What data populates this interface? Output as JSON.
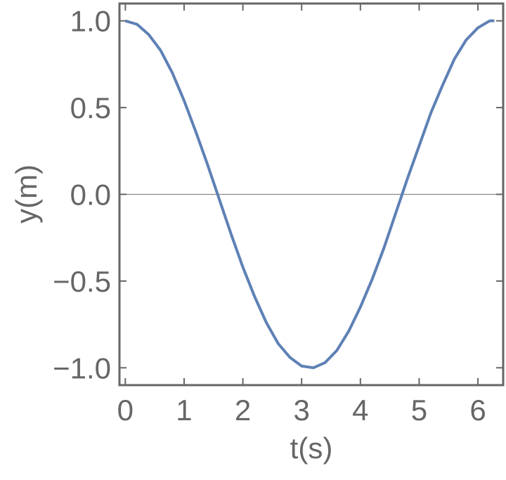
{
  "chart_data": {
    "type": "line",
    "x_label": "t(s)",
    "y_label": "y(m)",
    "x": [
      0,
      0.2,
      0.4,
      0.6,
      0.8,
      1.0,
      1.2,
      1.4,
      1.6,
      1.8,
      2.0,
      2.2,
      2.4,
      2.6,
      2.8,
      3.0,
      3.2,
      3.4,
      3.6,
      3.8,
      4.0,
      4.2,
      4.4,
      4.6,
      4.8,
      5.0,
      5.2,
      5.4,
      5.6,
      5.8,
      6.0,
      6.2,
      6.28
    ],
    "series": [
      {
        "color": "#5e81b5",
        "values": [
          1,
          0.98,
          0.92,
          0.83,
          0.7,
          0.54,
          0.36,
          0.17,
          -0.03,
          -0.23,
          -0.42,
          -0.59,
          -0.74,
          -0.86,
          -0.94,
          -0.99,
          -1.0,
          -0.97,
          -0.9,
          -0.79,
          -0.65,
          -0.49,
          -0.31,
          -0.11,
          0.09,
          0.28,
          0.47,
          0.63,
          0.78,
          0.89,
          0.96,
          1.0,
          1.0
        ]
      }
    ],
    "xlim": [
      -0.1,
      6.43
    ],
    "ylim": [
      -1.1,
      1.1
    ],
    "xticks": [
      0,
      1,
      2,
      3,
      4,
      5,
      6
    ],
    "yticks": [
      {
        "value": -1,
        "label": "−1.0"
      },
      {
        "value": -0.5,
        "label": "−0.5"
      },
      {
        "value": 0,
        "label": "0.0"
      },
      {
        "value": 0.5,
        "label": "0.5"
      },
      {
        "value": 1,
        "label": "1.0"
      }
    ]
  }
}
